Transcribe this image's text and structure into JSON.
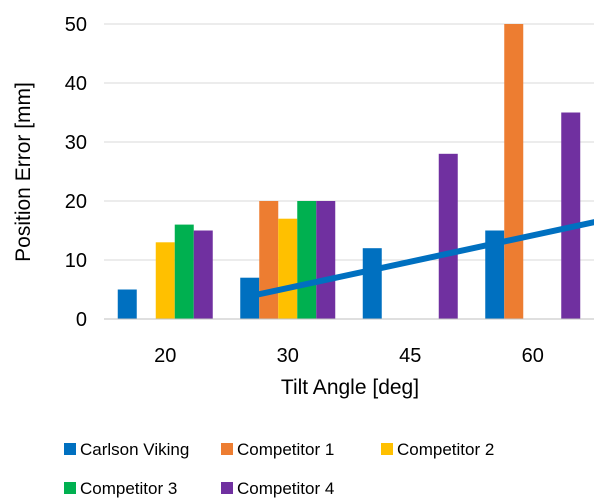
{
  "chart_data": {
    "type": "bar",
    "title": "",
    "xlabel": "Tilt Angle [deg]",
    "ylabel": "Position Error [mm]",
    "categories": [
      "20",
      "30",
      "45",
      "60"
    ],
    "ylim": [
      0,
      50
    ],
    "yticks": [
      "0",
      "10",
      "20",
      "30",
      "40",
      "50"
    ],
    "grid": true,
    "legend_position": "bottom",
    "series": [
      {
        "name": "Carlson Viking",
        "color": "#0070C0",
        "values": [
          5,
          7,
          12,
          15
        ]
      },
      {
        "name": "Competitor 1",
        "color": "#ED7D31",
        "values": [
          null,
          20,
          null,
          50
        ]
      },
      {
        "name": "Competitor 2",
        "color": "#FFC000",
        "values": [
          13,
          17,
          null,
          null
        ]
      },
      {
        "name": "Competitor 3",
        "color": "#00B050",
        "values": [
          16,
          20,
          null,
          null
        ]
      },
      {
        "name": "Competitor 4",
        "color": "#7030A0",
        "values": [
          15,
          20,
          28,
          35
        ]
      }
    ],
    "trendline": {
      "series": "Carlson Viking",
      "type": "linear",
      "color": "#0070C0",
      "start": [
        1.2,
        3.9
      ],
      "end": [
        4.2,
        17.3
      ]
    }
  }
}
